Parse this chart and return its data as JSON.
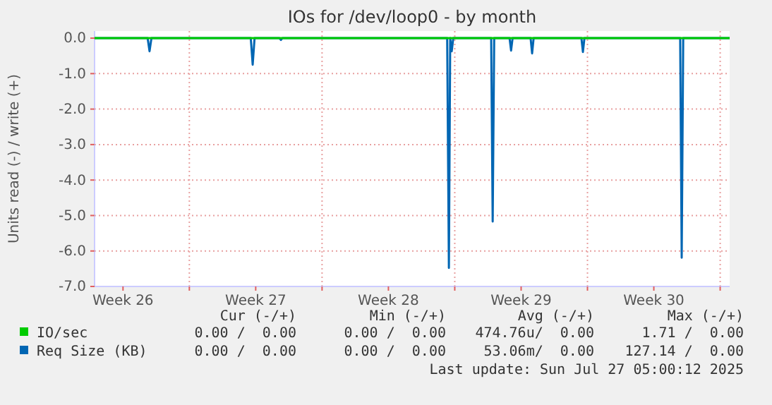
{
  "chart_data": {
    "type": "line",
    "title": "IOs for /dev/loop0 - by month",
    "ylabel": "Units read (-) / write (+)",
    "xlim": [
      "2025-06-25",
      "2025-07-28T12:00"
    ],
    "xticks": [
      {
        "value": "2025-06-26T12:00",
        "label": "Week 26"
      },
      {
        "value": "2025-06-30",
        "label": null
      },
      {
        "value": "2025-07-03T12:00",
        "label": "Week 27"
      },
      {
        "value": "2025-07-07",
        "label": null
      },
      {
        "value": "2025-07-10T12:00",
        "label": "Week 28"
      },
      {
        "value": "2025-07-14",
        "label": null
      },
      {
        "value": "2025-07-17T12:00",
        "label": "Week 29"
      },
      {
        "value": "2025-07-21",
        "label": null
      },
      {
        "value": "2025-07-24T12:00",
        "label": "Week 30"
      },
      {
        "value": "2025-07-28",
        "label": null
      }
    ],
    "ylim": [
      -7,
      0.2
    ],
    "yticks": [
      {
        "value": -7,
        "label": "-7.0"
      },
      {
        "value": -6,
        "label": "-6.0"
      },
      {
        "value": -5,
        "label": "-5.0"
      },
      {
        "value": -4,
        "label": "-4.0"
      },
      {
        "value": -3,
        "label": "-3.0"
      },
      {
        "value": -2,
        "label": "-2.0"
      },
      {
        "value": -1,
        "label": "-1.0"
      },
      {
        "value": 0,
        "label": "0.0"
      }
    ],
    "grid": true,
    "legend": "bottom",
    "marker": "none",
    "line_style": "solid",
    "series": [
      {
        "name": "IO/sec",
        "color": "#00cc00",
        "x": [
          "2025-06-25T00:00",
          "2025-07-05T00:00",
          "2025-07-15T00:00",
          "2025-07-25T23:17",
          "2025-07-28T12:00"
        ],
        "values": [
          0,
          0,
          0,
          0,
          0
        ]
      },
      {
        "name": "Req Size (KB)",
        "color": "#0066b3",
        "x": [
          "2025-06-25T00:00",
          "2025-06-27T19:12",
          "2025-06-27T21:36",
          "2025-06-28T00:00",
          "2025-07-03T05:46",
          "2025-07-03T08:10",
          "2025-07-03T10:34",
          "2025-07-04T18:00",
          "2025-07-04T19:55",
          "2025-07-04T21:50",
          "2025-07-13T14:24",
          "2025-07-13T16:34",
          "2025-07-13T18:14",
          "2025-07-13T20:10",
          "2025-07-13T22:05",
          "2025-07-15T22:05",
          "2025-07-16T00:00",
          "2025-07-16T01:55",
          "2025-07-16T21:22",
          "2025-07-16T23:17",
          "2025-07-17T01:12",
          "2025-07-18T00:00",
          "2025-07-18T01:55",
          "2025-07-18T03:50",
          "2025-07-20T16:19",
          "2025-07-20T18:14",
          "2025-07-20T20:10",
          "2025-07-25T21:22",
          "2025-07-25T23:17",
          "2025-07-26T01:12",
          "2025-07-28T12:00"
        ],
        "values": [
          0,
          0,
          -0.37,
          0,
          0,
          -0.75,
          0,
          0,
          -0.05,
          0,
          0,
          -6.48,
          0,
          -0.37,
          0,
          0,
          -5.17,
          0,
          0,
          -0.35,
          0,
          0,
          -0.43,
          0,
          0,
          -0.39,
          0,
          0,
          -6.19,
          0,
          0
        ]
      }
    ],
    "annotations": [
      "Cur (-/+)",
      "Min (-/+)",
      "Avg (-/+)",
      "Max (-/+)",
      "0.00 /  0.00",
      "0.00 /  0.00",
      "474.76u/  0.00",
      "1.71 /  0.00",
      "0.00 /  0.00",
      "0.00 /  0.00",
      "53.06m/  0.00",
      "127.14 /  0.00",
      "Last update: Sun Jul 27 05:00:12 2025"
    ]
  }
}
